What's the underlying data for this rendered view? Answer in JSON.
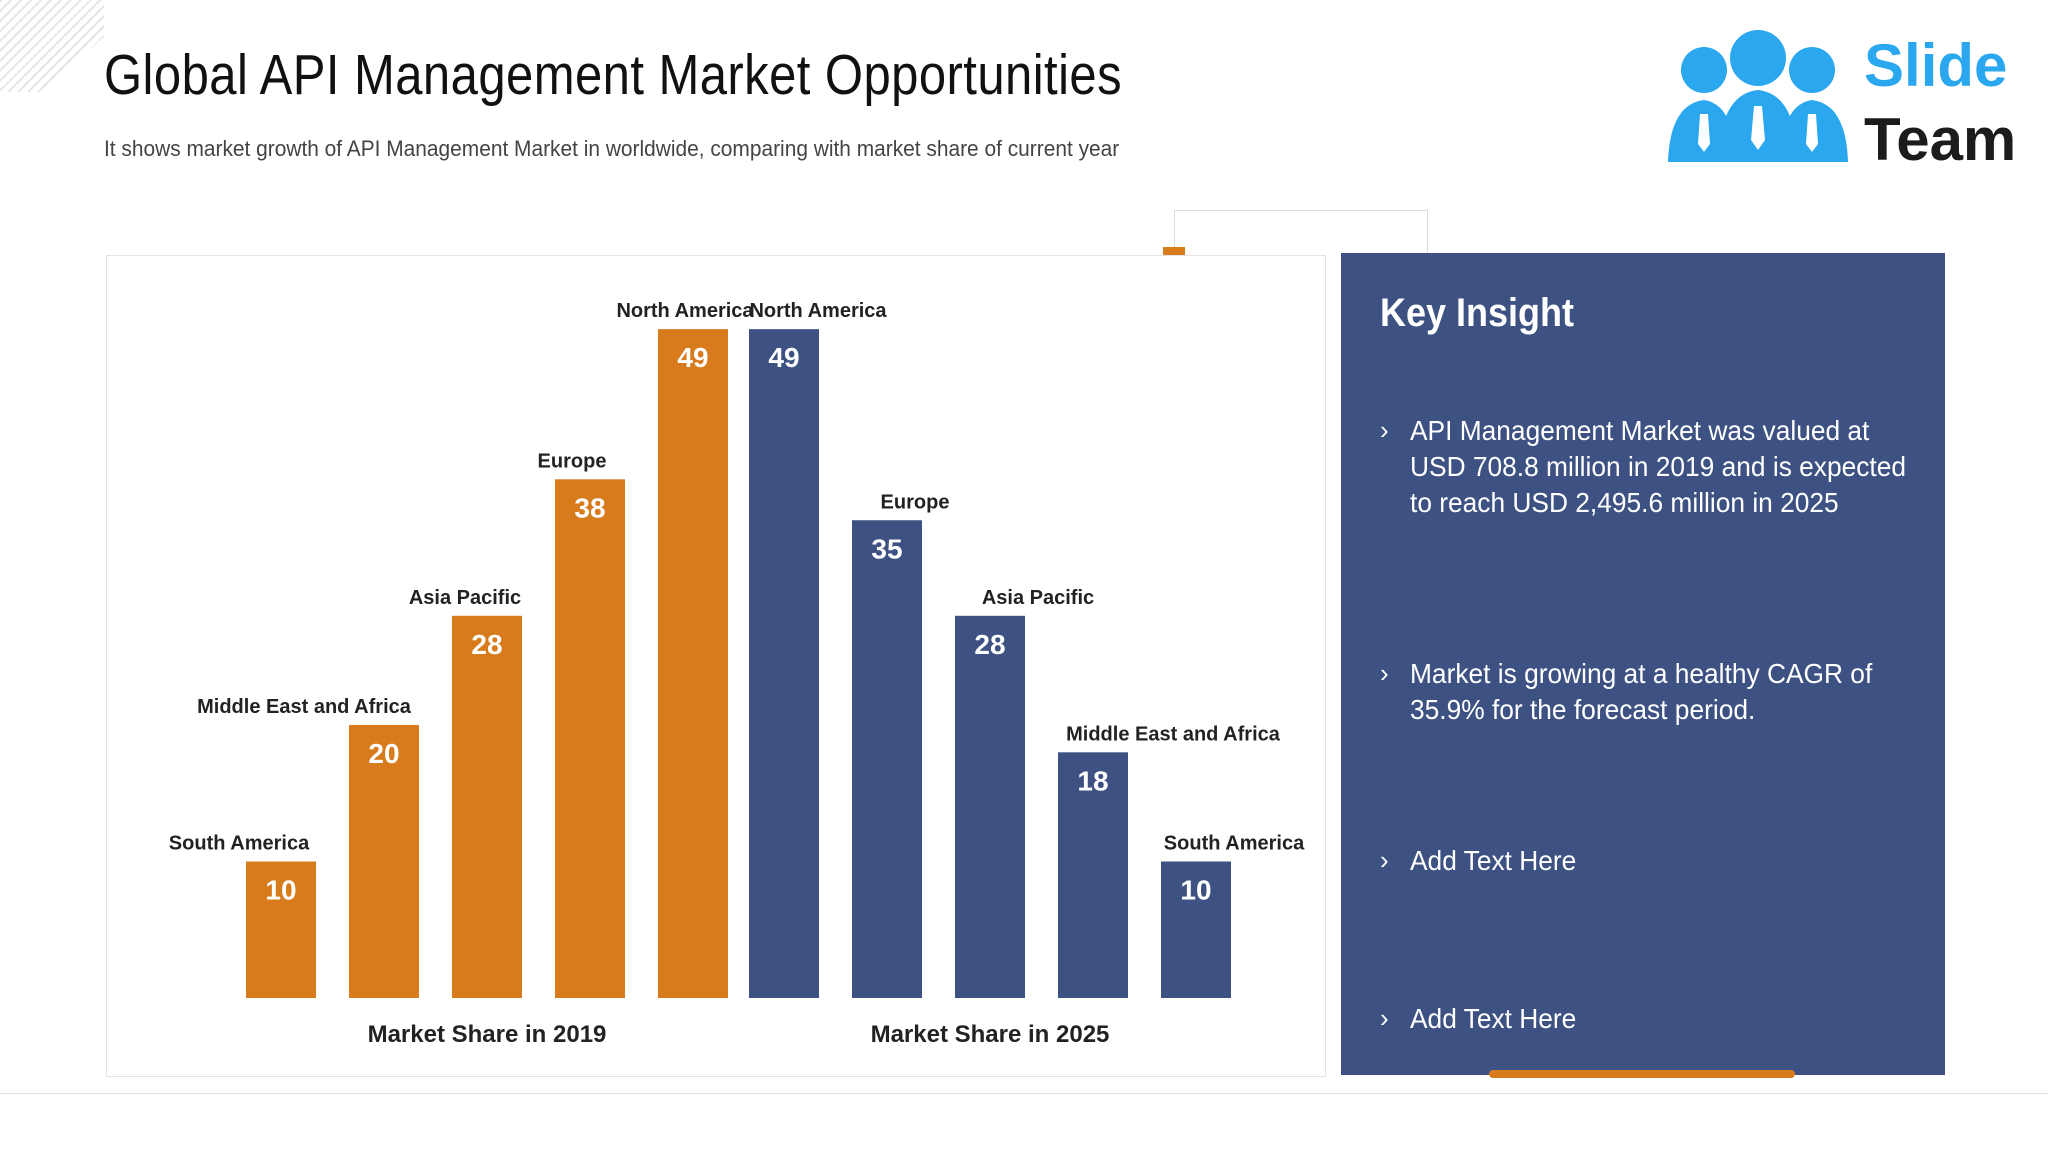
{
  "header": {
    "title": "Global API Management Market Opportunities",
    "subtitle": "It shows market growth of API Management Market in worldwide, comparing with market share of current year"
  },
  "logo": {
    "line1": "Slide",
    "line2": "Team"
  },
  "colors": {
    "orange": "#d77b1d",
    "navy": "#3d5282",
    "logo_blue": "#2aa7ee"
  },
  "chart_data": {
    "type": "bar",
    "ylim": [
      0,
      50
    ],
    "groups": [
      {
        "label": "Market Share in 2019",
        "color": "#d77b1d",
        "categories": [
          "South America",
          "Middle East and Africa",
          "Asia Pacific",
          "Europe",
          "North America"
        ],
        "values": [
          10,
          20,
          28,
          38,
          49
        ]
      },
      {
        "label": "Market Share in 2025",
        "color": "#3d5282",
        "categories": [
          "North America",
          "Europe",
          "Asia Pacific",
          "Middle East and Africa",
          "South America"
        ],
        "values": [
          49,
          35,
          28,
          18,
          10
        ]
      }
    ]
  },
  "insight": {
    "title": "Key Insight",
    "items": [
      {
        "text": "API Management Market was valued at USD 708.8 million in 2019 and is expected to reach USD 2,495.6 million in 2025"
      },
      {
        "text": "Market is growing at a healthy CAGR of 35.9%  for the forecast period."
      },
      {
        "text": "Add Text Here"
      },
      {
        "text": "Add Text Here"
      }
    ],
    "bullet": "›"
  }
}
